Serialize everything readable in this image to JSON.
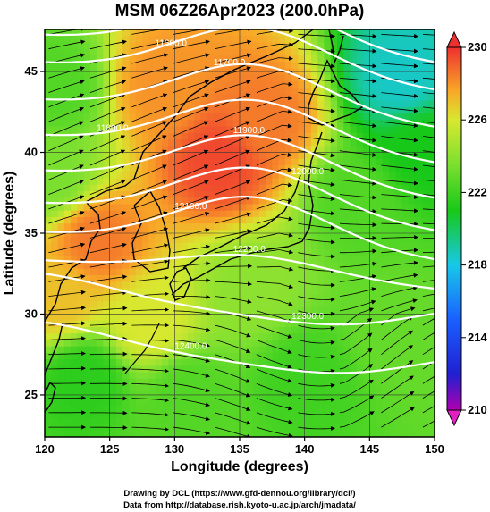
{
  "chart_data": {
    "type": "heatmap",
    "title": "MSM 06Z26Apr2023 (200.0hPa)",
    "xlabel": "Longitude (degrees)",
    "ylabel": "Latitude  (degrees)",
    "xlim": [
      120,
      150
    ],
    "ylim": [
      22.4,
      47.6
    ],
    "x_ticks": [
      120,
      125,
      130,
      135,
      140,
      145,
      150
    ],
    "y_ticks": [
      25,
      30,
      35,
      40,
      45
    ],
    "colorbar": {
      "ticks": [
        210,
        214,
        218,
        222,
        226,
        230
      ],
      "range": [
        210,
        230
      ],
      "extend": "both"
    },
    "field_anchors": [
      {
        "lon": 133.5,
        "lat": 39.5,
        "value": 229.5
      },
      {
        "lon": 124,
        "lat": 34.5,
        "value": 228.5
      },
      {
        "lon": 129,
        "lat": 44,
        "value": 228
      },
      {
        "lon": 137,
        "lat": 42,
        "value": 228.5
      },
      {
        "lon": 147.5,
        "lat": 44.5,
        "value": 218.5
      },
      {
        "lon": 149,
        "lat": 40.5,
        "value": 221
      },
      {
        "lon": 144,
        "lat": 37,
        "value": 222.5
      },
      {
        "lon": 136,
        "lat": 31.5,
        "value": 224
      },
      {
        "lon": 121,
        "lat": 31,
        "value": 227
      },
      {
        "lon": 123,
        "lat": 26,
        "value": 221.5
      },
      {
        "lon": 131,
        "lat": 25,
        "value": 222.5
      },
      {
        "lon": 140,
        "lat": 26,
        "value": 222
      },
      {
        "lon": 147,
        "lat": 29,
        "value": 223
      },
      {
        "lon": 121,
        "lat": 44,
        "value": 222.5
      },
      {
        "lon": 120.5,
        "lat": 38.5,
        "value": 223.5
      },
      {
        "lon": 128,
        "lat": 29.5,
        "value": 226
      }
    ],
    "contour_labels": [
      "11500",
      "11600.0",
      "11700.0",
      "11800.0",
      "11900.0",
      "12000.0",
      "12100.0",
      "12200.0",
      "12300.0",
      "12400.0"
    ],
    "colors": {
      "warm": "#e83a3a",
      "mid": "#c8e43a",
      "green": "#2ec82e",
      "cool": "#1ea0ff",
      "streamline": "#000000",
      "contour": "#ffffff",
      "coast": "#000000"
    }
  },
  "credits": {
    "line1": "Drawing by DCL (https://www.gfd-dennou.org/library/dcl/)",
    "line2": "Data from http://database.rish.kyoto-u.ac.jp/arch/jmadata/"
  }
}
